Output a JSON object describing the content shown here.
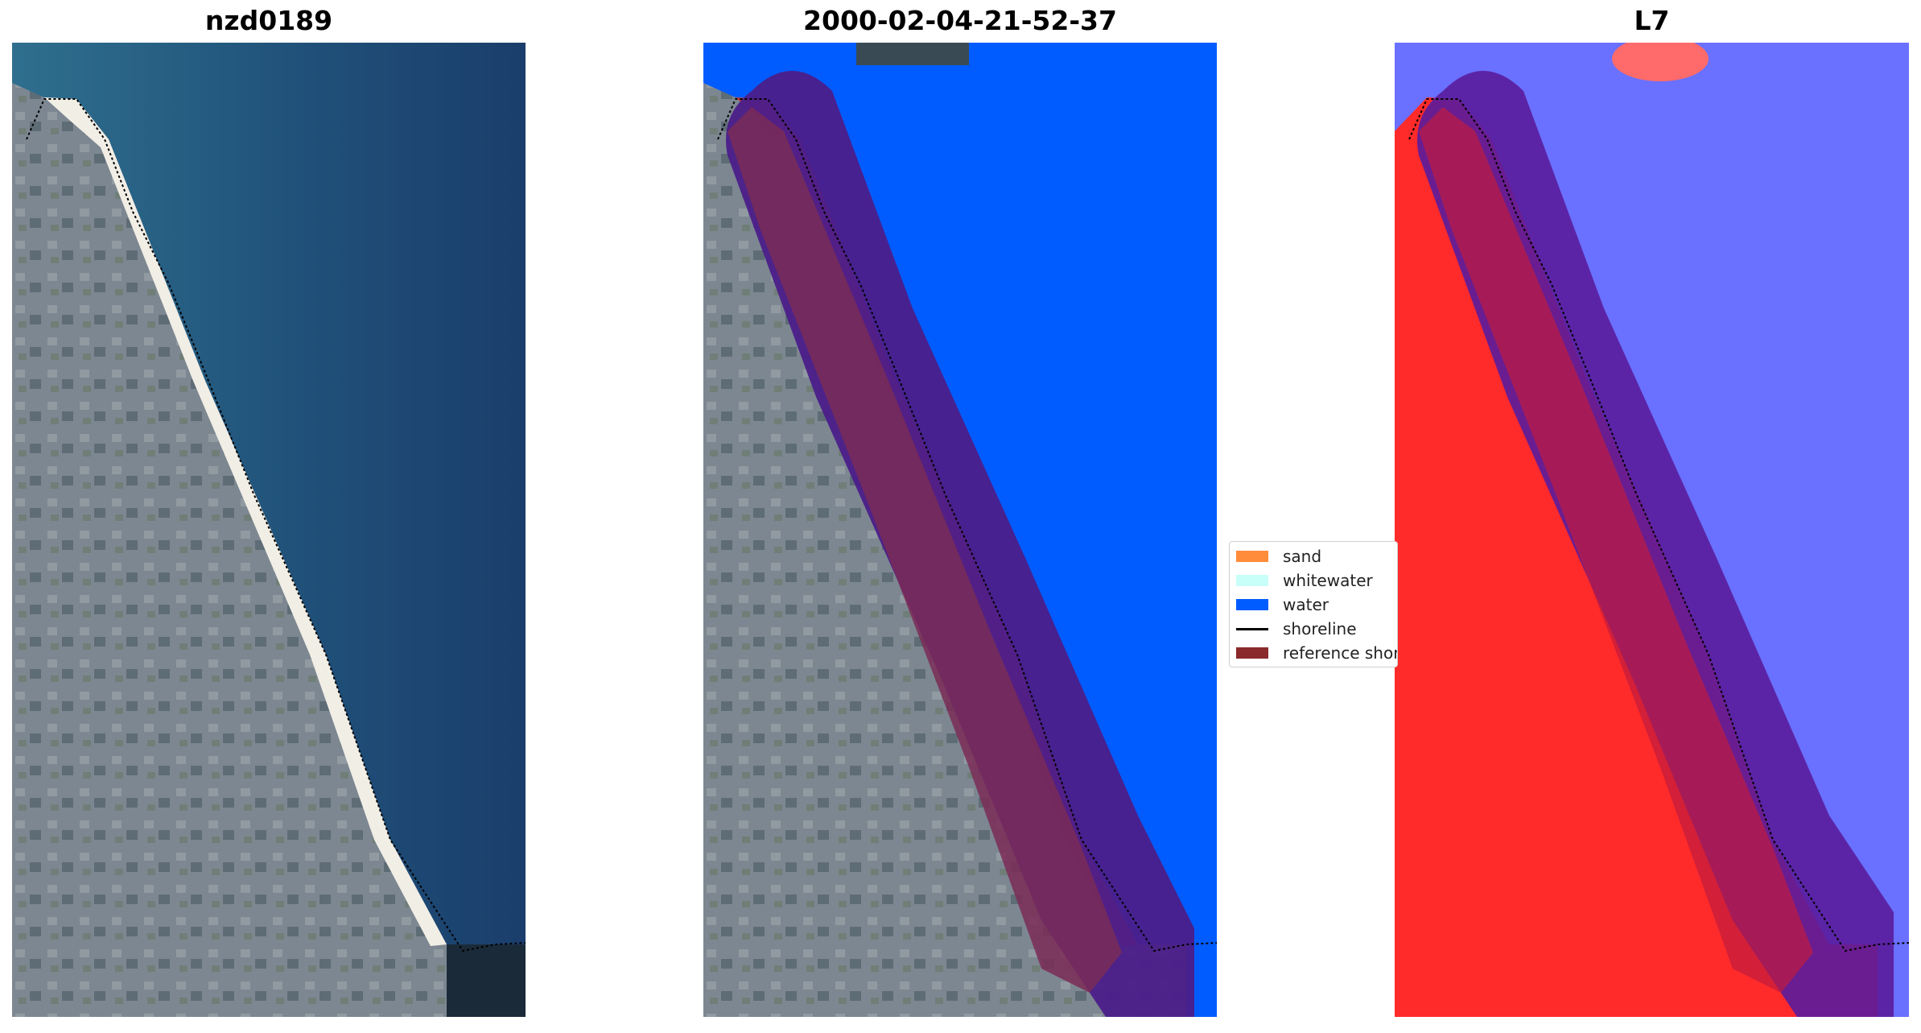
{
  "panels": [
    {
      "title": "nzd0189"
    },
    {
      "title": "2000-02-04-21-52-37"
    },
    {
      "title": "L7"
    }
  ],
  "legend": {
    "placement": "center",
    "items": [
      {
        "label": "sand",
        "color": "#ff8c3a",
        "kind": "patch"
      },
      {
        "label": "whitewater",
        "color": "#c8fff8",
        "kind": "patch"
      },
      {
        "label": "water",
        "color": "#005cff",
        "kind": "patch"
      },
      {
        "label": "shoreline",
        "color": "#000000",
        "kind": "line"
      },
      {
        "label": "reference shoreline",
        "color": "#8b2a2a",
        "kind": "patch"
      }
    ]
  },
  "colors": {
    "deep_water": "#1c3f6e",
    "shallow_water": "#2b6a88",
    "land": "#7f8891",
    "beach": "#f4f1e8",
    "class_water": "#005cff",
    "buffer": "#4b1e8a",
    "reference_shoreline": "#8b2a2a",
    "index_land": "#ff2020",
    "index_water": "#6a70ff"
  }
}
